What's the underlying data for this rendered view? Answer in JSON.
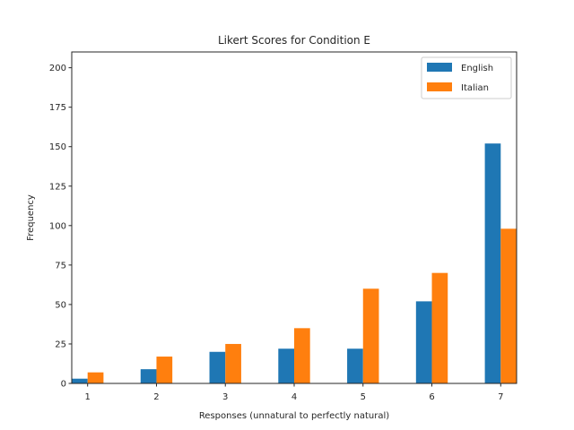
{
  "chart_data": {
    "type": "bar",
    "title": "Likert Scores for Condition E",
    "xlabel": "Responses (unnatural to perfectly natural)",
    "ylabel": "Frequency",
    "categories": [
      "1",
      "2",
      "3",
      "4",
      "5",
      "6",
      "7"
    ],
    "series": [
      {
        "name": "English",
        "color": "#1f77b4",
        "values": [
          3,
          9,
          20,
          22,
          22,
          52,
          152
        ]
      },
      {
        "name": "Italian",
        "color": "#ff7f0e",
        "values": [
          7,
          17,
          25,
          35,
          60,
          70,
          98
        ]
      }
    ],
    "ylim": [
      0,
      210
    ],
    "yticks": [
      0,
      25,
      50,
      75,
      100,
      125,
      150,
      175,
      200
    ],
    "grid": false,
    "legend_position": "top-right"
  }
}
